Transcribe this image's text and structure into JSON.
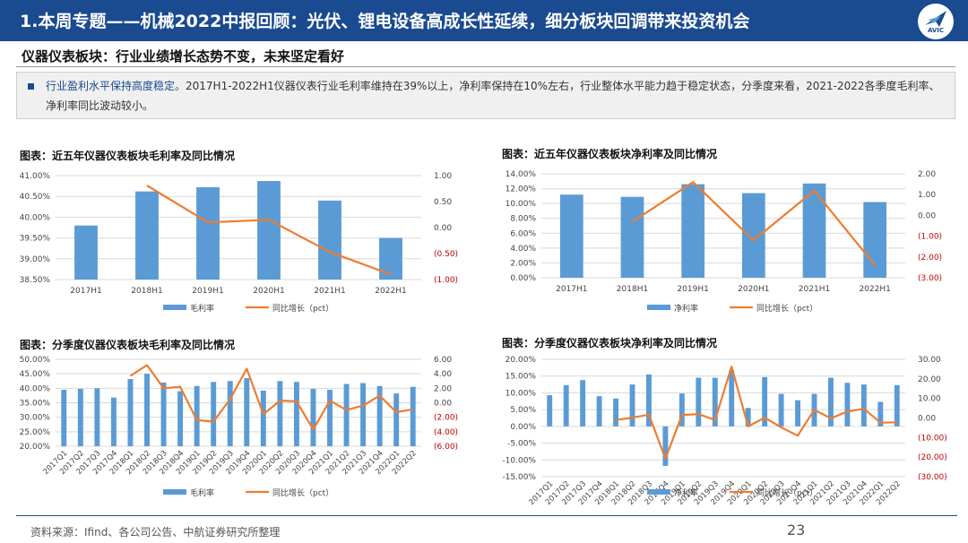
{
  "header": {
    "title": "1.本周专题——机械2022中报回顾：光伏、锂电设备高成长性延续，细分板块回调带来投资机会",
    "logo_text": "AVIC"
  },
  "subtitle": "仪器仪表板块：行业业绩增长态势不变，未来坚定看好",
  "summary": {
    "lead": "行业盈利水平保持高度稳定。",
    "body": "2017H1-2022H1仪器仪表行业毛利率维持在39%以上，净利率保持在10%左右，行业整体水平能力趋于稳定状态，分季度来看，2021-2022各季度毛利率、净利率同比波动较小。"
  },
  "colors": {
    "bar": "#5b9bd5",
    "line": "#ed7d31",
    "header": "#1a4a8f"
  },
  "chart_data": [
    {
      "type": "bar",
      "title": "图表：近五年仪器仪表板块毛利率及同比情况",
      "categories": [
        "2017H1",
        "2018H1",
        "2019H1",
        "2020H1",
        "2021H1",
        "2022H1"
      ],
      "series": [
        {
          "name": "毛利率",
          "type": "bar",
          "axis": "left",
          "values": [
            39.8,
            40.62,
            40.72,
            40.87,
            40.4,
            39.5
          ]
        },
        {
          "name": "同比增长（pct）",
          "type": "line",
          "axis": "right",
          "values": [
            null,
            0.81,
            0.1,
            0.15,
            -0.47,
            -0.9
          ]
        }
      ],
      "left_axis": {
        "min": 38.5,
        "max": 41.0,
        "ticks": [
          "38.50%",
          "39.00%",
          "39.50%",
          "40.00%",
          "40.50%",
          "41.00%"
        ]
      },
      "right_axis": {
        "min": -1.0,
        "max": 1.0,
        "ticks": [
          "(1.00)",
          "(0.50)",
          "0.00",
          "0.50",
          "1.00"
        ]
      },
      "legend": "bottom"
    },
    {
      "type": "bar",
      "title": "图表：近五年仪器仪表板块净利率及同比情况",
      "categories": [
        "2017H1",
        "2018H1",
        "2019H1",
        "2020H1",
        "2021H1",
        "2022H1"
      ],
      "series": [
        {
          "name": "净利率",
          "type": "bar",
          "axis": "left",
          "values": [
            11.2,
            10.9,
            12.6,
            11.4,
            12.7,
            10.2
          ]
        },
        {
          "name": "同比增长（pct）",
          "type": "line",
          "axis": "right",
          "values": [
            null,
            -0.3,
            1.6,
            -1.2,
            1.2,
            -2.4
          ]
        }
      ],
      "left_axis": {
        "min": 0,
        "max": 14,
        "ticks": [
          "0.00%",
          "2.00%",
          "4.00%",
          "6.00%",
          "8.00%",
          "10.00%",
          "12.00%",
          "14.00%"
        ]
      },
      "right_axis": {
        "min": -3,
        "max": 2,
        "ticks": [
          "(3.00)",
          "(2.00)",
          "(1.00)",
          "0.00",
          "1.00",
          "2.00"
        ]
      },
      "legend": "bottom"
    },
    {
      "type": "bar",
      "title": "图表：分季度仪器仪表板块毛利率及同比情况",
      "categories": [
        "2017Q1",
        "2017Q2",
        "2017Q3",
        "2017Q4",
        "2018Q1",
        "2018Q2",
        "2018Q3",
        "2018Q4",
        "2019Q1",
        "2019Q2",
        "2019Q3",
        "2019Q4",
        "2020Q1",
        "2020Q2",
        "2020Q3",
        "2020Q4",
        "2021Q1",
        "2021Q2",
        "2021Q3",
        "2021Q4",
        "2022Q1",
        "2022Q2"
      ],
      "series": [
        {
          "name": "毛利率",
          "type": "bar",
          "axis": "left",
          "values": [
            39.5,
            39.8,
            40.0,
            36.8,
            43.2,
            45.0,
            42.0,
            39.0,
            40.8,
            42.2,
            42.5,
            43.5,
            39.2,
            42.5,
            42.2,
            39.8,
            39.5,
            41.5,
            41.8,
            40.8,
            38.2,
            40.5
          ]
        },
        {
          "name": "同比增长（pct）",
          "type": "line",
          "axis": "right",
          "values": [
            null,
            null,
            null,
            null,
            3.7,
            5.2,
            2.0,
            2.2,
            -2.4,
            -2.6,
            0.5,
            4.7,
            -1.6,
            0.3,
            0.2,
            -3.7,
            0.3,
            -1.0,
            -0.4,
            1.0,
            -1.3,
            -0.9
          ]
        }
      ],
      "left_axis": {
        "min": 20,
        "max": 50,
        "ticks": [
          "20.00%",
          "25.00%",
          "30.00%",
          "35.00%",
          "40.00%",
          "45.00%",
          "50.00%"
        ]
      },
      "right_axis": {
        "min": -6,
        "max": 6,
        "ticks": [
          "(6.00)",
          "(4.00)",
          "(2.00)",
          "0.00",
          "2.00",
          "4.00",
          "6.00"
        ]
      },
      "legend": "bottom"
    },
    {
      "type": "bar",
      "title": "图表：分季度仪器仪表板块净利率及同比情况",
      "categories": [
        "2017Q1",
        "2017Q2",
        "2017Q3",
        "2017Q4",
        "2018Q1",
        "2018Q2",
        "2018Q3",
        "2018Q4",
        "2019Q1",
        "2019Q2",
        "2019Q3",
        "2019Q4",
        "2020Q1",
        "2020Q2",
        "2020Q3",
        "2020Q4",
        "2021Q1",
        "2021Q2",
        "2021Q3",
        "2021Q4",
        "2022Q1",
        "2022Q2"
      ],
      "series": [
        {
          "name": "净利率",
          "type": "bar",
          "axis": "left",
          "values": [
            9.3,
            12.3,
            13.8,
            9.0,
            8.3,
            12.5,
            15.5,
            -11.8,
            9.8,
            14.5,
            14.5,
            16.8,
            5.5,
            14.7,
            9.7,
            7.8,
            9.7,
            14.5,
            13.0,
            12.5,
            7.3,
            12.3
          ]
        },
        {
          "name": "同比增长（pct）",
          "type": "line",
          "axis": "right",
          "values": [
            null,
            null,
            null,
            null,
            -1.0,
            0.2,
            1.7,
            -20.8,
            1.5,
            2.0,
            -1.0,
            26.3,
            -4.3,
            0.2,
            -4.8,
            -9.0,
            4.2,
            -0.2,
            3.3,
            4.7,
            -2.4,
            -2.2
          ]
        }
      ],
      "left_axis": {
        "min": -15,
        "max": 20,
        "ticks": [
          "-15.00%",
          "-10.00%",
          "-5.00%",
          "0.00%",
          "5.00%",
          "10.00%",
          "15.00%",
          "20.00%"
        ]
      },
      "right_axis": {
        "min": -30,
        "max": 30,
        "ticks": [
          "(30.00)",
          "(20.00)",
          "(10.00)",
          "0.00",
          "10.00",
          "20.00",
          "30.00"
        ]
      },
      "legend": "bottom"
    }
  ],
  "footer": {
    "source": "资料来源：Ifind、各公司公告、中航证券研究所整理",
    "page": "23"
  }
}
